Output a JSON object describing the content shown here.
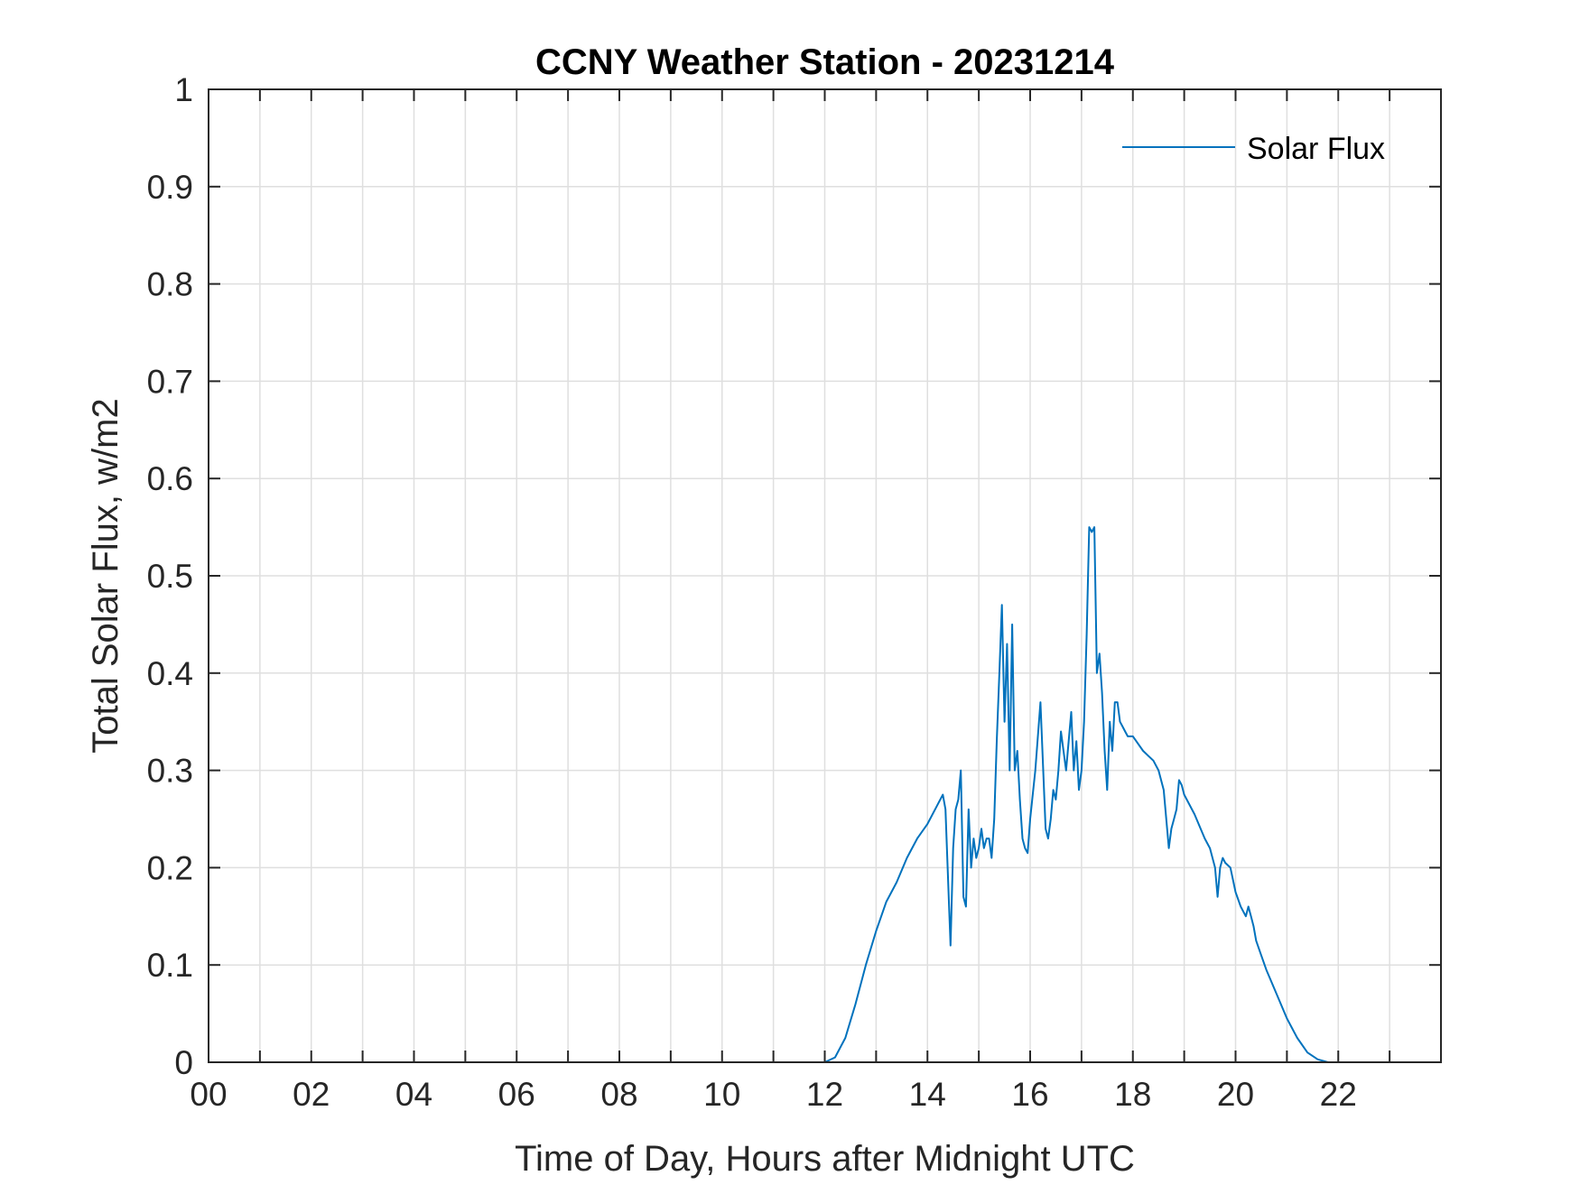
{
  "chart_data": {
    "type": "line",
    "title": "CCNY Weather Station - 20231214",
    "xlabel": "Time of Day, Hours after Midnight UTC",
    "ylabel": "Total Solar Flux, w/m2",
    "xlim": [
      0,
      24
    ],
    "ylim": [
      0,
      1
    ],
    "x_tick_values": [
      0,
      2,
      4,
      6,
      8,
      10,
      12,
      14,
      16,
      18,
      20,
      22
    ],
    "x_tick_labels": [
      "00",
      "02",
      "04",
      "06",
      "08",
      "10",
      "12",
      "14",
      "16",
      "18",
      "20",
      "22"
    ],
    "y_tick_values": [
      0,
      0.1,
      0.2,
      0.3,
      0.4,
      0.5,
      0.6,
      0.7,
      0.8,
      0.9,
      1
    ],
    "y_tick_labels": [
      "0",
      "0.1",
      "0.2",
      "0.3",
      "0.4",
      "0.5",
      "0.6",
      "0.7",
      "0.8",
      "0.9",
      "1"
    ],
    "grid": true,
    "legend_position": "top-right",
    "series": [
      {
        "name": "Solar Flux",
        "color": "#0072BD",
        "x": [
          0,
          12.0,
          12.2,
          12.4,
          12.6,
          12.8,
          13.0,
          13.2,
          13.4,
          13.6,
          13.8,
          14.0,
          14.2,
          14.3,
          14.35,
          14.45,
          14.5,
          14.55,
          14.6,
          14.65,
          14.7,
          14.75,
          14.8,
          14.85,
          14.9,
          14.95,
          15.0,
          15.05,
          15.1,
          15.15,
          15.2,
          15.25,
          15.3,
          15.35,
          15.4,
          15.45,
          15.5,
          15.55,
          15.6,
          15.65,
          15.7,
          15.75,
          15.8,
          15.85,
          15.9,
          15.95,
          16.0,
          16.1,
          16.2,
          16.3,
          16.35,
          16.4,
          16.45,
          16.5,
          16.55,
          16.6,
          16.7,
          16.8,
          16.85,
          16.9,
          16.95,
          17.0,
          17.05,
          17.1,
          17.15,
          17.2,
          17.25,
          17.3,
          17.35,
          17.4,
          17.45,
          17.5,
          17.55,
          17.6,
          17.65,
          17.7,
          17.75,
          17.8,
          17.85,
          17.9,
          18.0,
          18.2,
          18.4,
          18.5,
          18.6,
          18.7,
          18.75,
          18.8,
          18.85,
          18.9,
          18.95,
          19.0,
          19.2,
          19.4,
          19.5,
          19.6,
          19.65,
          19.7,
          19.75,
          19.8,
          19.9,
          20.0,
          20.1,
          20.2,
          20.25,
          20.3,
          20.35,
          20.4,
          20.5,
          20.6,
          20.8,
          21.0,
          21.2,
          21.4,
          21.6,
          21.8,
          22.0,
          23.95
        ],
        "y": [
          0,
          0,
          0.005,
          0.025,
          0.06,
          0.1,
          0.135,
          0.165,
          0.185,
          0.21,
          0.23,
          0.245,
          0.265,
          0.275,
          0.26,
          0.12,
          0.22,
          0.26,
          0.27,
          0.3,
          0.17,
          0.16,
          0.26,
          0.2,
          0.23,
          0.21,
          0.22,
          0.24,
          0.22,
          0.23,
          0.23,
          0.21,
          0.25,
          0.33,
          0.4,
          0.47,
          0.35,
          0.43,
          0.3,
          0.45,
          0.3,
          0.32,
          0.27,
          0.23,
          0.22,
          0.215,
          0.25,
          0.3,
          0.37,
          0.24,
          0.23,
          0.25,
          0.28,
          0.27,
          0.3,
          0.34,
          0.3,
          0.36,
          0.3,
          0.33,
          0.28,
          0.3,
          0.35,
          0.44,
          0.55,
          0.545,
          0.55,
          0.4,
          0.42,
          0.38,
          0.32,
          0.28,
          0.35,
          0.32,
          0.37,
          0.37,
          0.35,
          0.345,
          0.34,
          0.335,
          0.335,
          0.32,
          0.31,
          0.3,
          0.28,
          0.22,
          0.24,
          0.25,
          0.26,
          0.29,
          0.285,
          0.275,
          0.255,
          0.23,
          0.22,
          0.2,
          0.17,
          0.2,
          0.21,
          0.205,
          0.2,
          0.175,
          0.16,
          0.15,
          0.16,
          0.15,
          0.14,
          0.125,
          0.11,
          0.095,
          0.07,
          0.045,
          0.025,
          0.01,
          0.003,
          0,
          0,
          0
        ]
      }
    ]
  }
}
